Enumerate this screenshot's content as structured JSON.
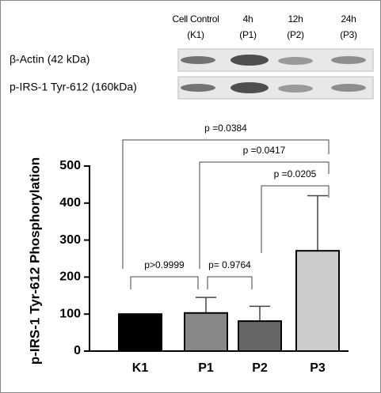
{
  "blot": {
    "lanes": [
      {
        "name": "Cell Control",
        "code": "(K1)"
      },
      {
        "name": "4h",
        "code": "(P1)"
      },
      {
        "name": "12h",
        "code": "(P2)"
      },
      {
        "name": "24h",
        "code": "(P3)"
      }
    ],
    "rows": [
      "β-Actin (42 kDa)",
      "p-IRS-1 Tyr-612 (160kDa)"
    ]
  },
  "chart_data": {
    "type": "bar",
    "y_label": "p-IRS-1 Tyr-612 Phosphorylation",
    "categories": [
      "K1",
      "P1",
      "P2",
      "P3"
    ],
    "values": [
      100,
      103,
      81,
      271
    ],
    "errors": [
      null,
      42,
      40,
      149
    ],
    "colors": [
      "#000000",
      "#888888",
      "#666666",
      "#cccccc"
    ],
    "ylim": [
      0,
      500
    ],
    "yticks": [
      0,
      100,
      200,
      300,
      400,
      500
    ],
    "comparisons": [
      {
        "pair": [
          0,
          1
        ],
        "label": "p>0.9999"
      },
      {
        "pair": [
          1,
          2
        ],
        "label": "p= 0.9764"
      },
      {
        "pair": [
          2,
          3
        ],
        "label": "p =0.0205"
      },
      {
        "pair": [
          1,
          3
        ],
        "label": "p =0.0417"
      },
      {
        "pair": [
          0,
          3
        ],
        "label": "p =0.0384"
      }
    ]
  }
}
